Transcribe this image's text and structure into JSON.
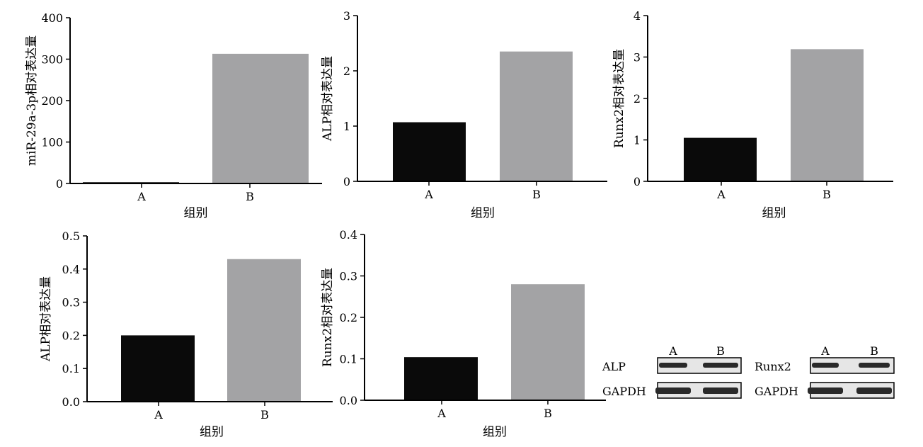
{
  "colors": {
    "group_a": "#0a0a0a",
    "group_b": "#a3a3a5",
    "axis": "#000000",
    "blot_band": "#2a2a2a",
    "blot_bg": "#e6e6e6"
  },
  "chart_data": [
    {
      "type": "bar",
      "categories": [
        "A",
        "B"
      ],
      "values": [
        3,
        313
      ],
      "xlabel": "组别",
      "ylabel": "miR-29a-3p相对表达量",
      "ylim": [
        0,
        400
      ],
      "yticks": [
        "0",
        "100",
        "200",
        "300",
        "400"
      ]
    },
    {
      "type": "bar",
      "categories": [
        "A",
        "B"
      ],
      "values": [
        1.07,
        2.35
      ],
      "xlabel": "组别",
      "ylabel": "ALP相对表达量",
      "ylim": [
        0,
        3
      ],
      "yticks": [
        "0",
        "1",
        "2",
        "3"
      ]
    },
    {
      "type": "bar",
      "categories": [
        "A",
        "B"
      ],
      "values": [
        1.05,
        3.19
      ],
      "xlabel": "组别",
      "ylabel": "Runx2相对表达量",
      "ylim": [
        0,
        4
      ],
      "yticks": [
        "0",
        "1",
        "2",
        "3",
        "4"
      ]
    },
    {
      "type": "bar",
      "categories": [
        "A",
        "B"
      ],
      "values": [
        0.2,
        0.43
      ],
      "xlabel": "组别",
      "ylabel": "ALP相对表达量",
      "ylim": [
        0,
        0.5
      ],
      "yticks": [
        "0.0",
        "0.1",
        "0.2",
        "0.3",
        "0.4",
        "0.5"
      ]
    },
    {
      "type": "bar",
      "categories": [
        "A",
        "B"
      ],
      "values": [
        0.104,
        0.28
      ],
      "xlabel": "组别",
      "ylabel": "Runx2相对表达量",
      "ylim": [
        0,
        0.4
      ],
      "yticks": [
        "0.0",
        "0.1",
        "0.2",
        "0.3",
        "0.4"
      ]
    }
  ],
  "western_blots": [
    {
      "lanes": [
        "A",
        "B"
      ],
      "rows": [
        "ALP",
        "GAPDH"
      ]
    },
    {
      "lanes": [
        "A",
        "B"
      ],
      "rows": [
        "Runx2",
        "GAPDH"
      ]
    }
  ]
}
